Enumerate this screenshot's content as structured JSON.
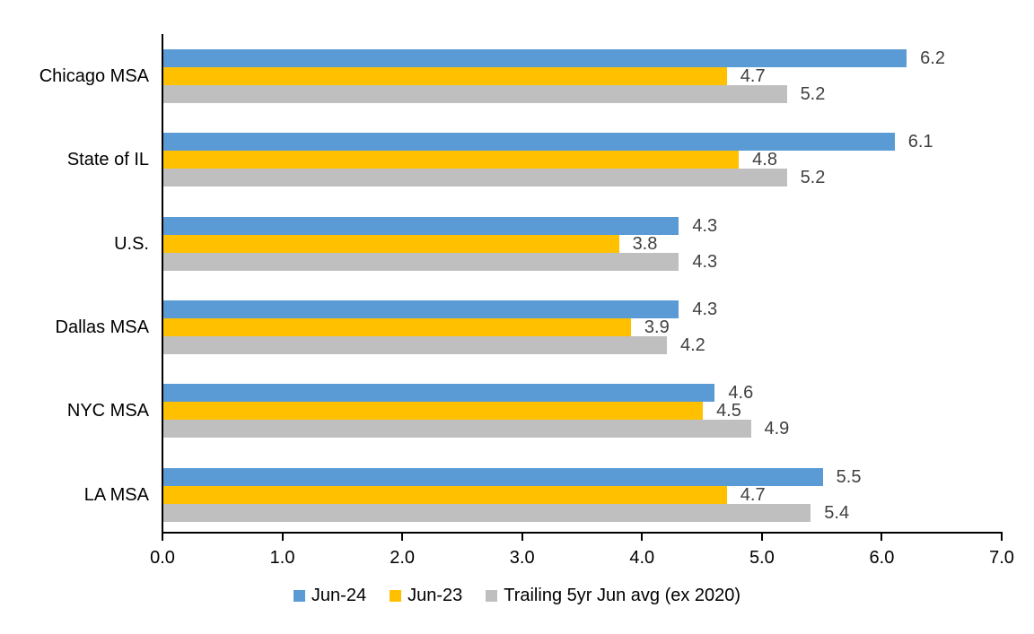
{
  "chart_data": {
    "type": "bar",
    "orientation": "horizontal",
    "title": "",
    "xlabel": "",
    "ylabel": "",
    "categories": [
      "Chicago MSA",
      "State of IL",
      "U.S.",
      "Dallas MSA",
      "NYC MSA",
      "LA MSA"
    ],
    "series": [
      {
        "name": "Jun-24",
        "color": "#5B9BD5",
        "values": [
          6.2,
          6.1,
          4.3,
          4.3,
          4.6,
          5.5
        ]
      },
      {
        "name": "Jun-23",
        "color": "#FFC000",
        "values": [
          4.7,
          4.8,
          3.8,
          3.9,
          4.5,
          4.7
        ]
      },
      {
        "name": "Trailing 5yr Jun avg (ex 2020)",
        "color": "#BFBFBF",
        "values": [
          5.2,
          5.2,
          4.3,
          4.2,
          4.9,
          5.4
        ]
      }
    ],
    "xlim": [
      0,
      7
    ],
    "x_ticks": [
      "0.0",
      "1.0",
      "2.0",
      "3.0",
      "4.0",
      "5.0",
      "6.0",
      "7.0"
    ],
    "data_labels": true,
    "value_decimals": 1,
    "grid": false,
    "legend_position": "bottom",
    "colors": {
      "axis_line": "#000000",
      "tick_label": "#000000",
      "category_label": "#000000",
      "data_label": "#404040",
      "background": "#FFFFFF"
    }
  }
}
